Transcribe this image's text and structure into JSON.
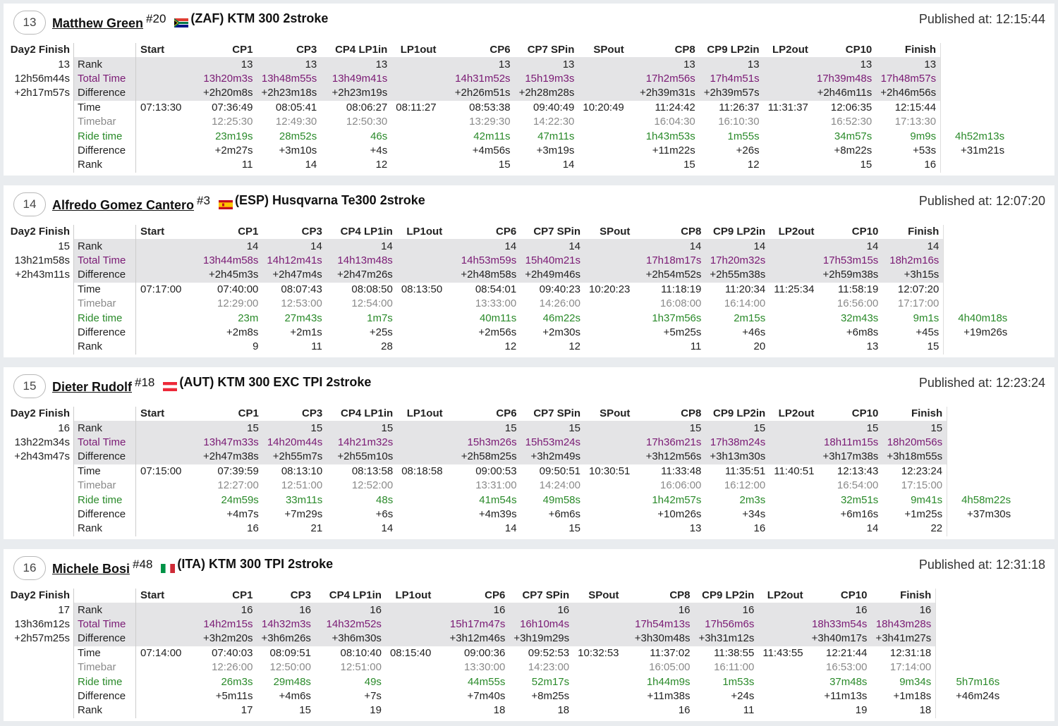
{
  "columns": [
    "Start",
    "CP1",
    "CP3",
    "CP4 LP1in",
    "LP1out",
    "CP6",
    "CP7 SPin",
    "SPout",
    "CP8",
    "CP9 LP2in",
    "LP2out",
    "CP10",
    "Finish"
  ],
  "day_label": "Day2 Finish",
  "row_labels": [
    "Rank",
    "Total Time",
    "Difference",
    "Time",
    "Timebar",
    "Ride time",
    "Difference",
    "Rank"
  ],
  "published_prefix": "Published at: ",
  "riders": [
    {
      "position": "13",
      "name": "Matthew Green",
      "number": "#20",
      "country": "ZAF",
      "bike": "(ZAF) KTM 300 2stroke",
      "published": "Published at: 12:15:44",
      "day_rank": "13",
      "day_time": "12h56m44s",
      "day_diff": "+2h17m57s",
      "rows": {
        "rank": [
          "",
          "13",
          "13",
          "13",
          "",
          "13",
          "13",
          "",
          "13",
          "13",
          "",
          "13",
          "13"
        ],
        "total_time": [
          "",
          "13h20m3s",
          "13h48m55s",
          "13h49m41s",
          "",
          "14h31m52s",
          "15h19m3s",
          "",
          "17h2m56s",
          "17h4m51s",
          "",
          "17h39m48s",
          "17h48m57s"
        ],
        "difference": [
          "",
          "+2h20m8s",
          "+2h23m18s",
          "+2h23m19s",
          "",
          "+2h26m51s",
          "+2h28m28s",
          "",
          "+2h39m31s",
          "+2h39m57s",
          "",
          "+2h46m11s",
          "+2h46m56s"
        ],
        "time": [
          "07:13:30",
          "07:36:49",
          "08:05:41",
          "08:06:27",
          "08:11:27",
          "08:53:38",
          "09:40:49",
          "10:20:49",
          "11:24:42",
          "11:26:37",
          "11:31:37",
          "12:06:35",
          "12:15:44"
        ],
        "timebar": [
          "",
          "12:25:30",
          "12:49:30",
          "12:50:30",
          "",
          "13:29:30",
          "14:22:30",
          "",
          "16:04:30",
          "16:10:30",
          "",
          "16:52:30",
          "17:13:30"
        ],
        "ride_time": [
          "",
          "23m19s",
          "28m52s",
          "46s",
          "",
          "42m11s",
          "47m11s",
          "",
          "1h43m53s",
          "1m55s",
          "",
          "34m57s",
          "9m9s"
        ],
        "ride_diff": [
          "",
          "+2m27s",
          "+3m10s",
          "+4s",
          "",
          "+4m56s",
          "+3m19s",
          "",
          "+11m22s",
          "+26s",
          "",
          "+8m22s",
          "+53s"
        ],
        "ride_rank": [
          "",
          "11",
          "14",
          "12",
          "",
          "15",
          "14",
          "",
          "15",
          "12",
          "",
          "15",
          "16"
        ]
      },
      "total_ride": "4h52m13s",
      "total_diff": "+31m21s"
    },
    {
      "position": "14",
      "name": "Alfredo Gomez Cantero",
      "number": "#3",
      "country": "ESP",
      "bike": "(ESP) Husqvarna Te300 2stroke",
      "published": "Published at: 12:07:20",
      "day_rank": "15",
      "day_time": "13h21m58s",
      "day_diff": "+2h43m11s",
      "rows": {
        "rank": [
          "",
          "14",
          "14",
          "14",
          "",
          "14",
          "14",
          "",
          "14",
          "14",
          "",
          "14",
          "14"
        ],
        "total_time": [
          "",
          "13h44m58s",
          "14h12m41s",
          "14h13m48s",
          "",
          "14h53m59s",
          "15h40m21s",
          "",
          "17h18m17s",
          "17h20m32s",
          "",
          "17h53m15s",
          "18h2m16s"
        ],
        "difference": [
          "",
          "+2h45m3s",
          "+2h47m4s",
          "+2h47m26s",
          "",
          "+2h48m58s",
          "+2h49m46s",
          "",
          "+2h54m52s",
          "+2h55m38s",
          "",
          "+2h59m38s",
          "+3h15s"
        ],
        "time": [
          "07:17:00",
          "07:40:00",
          "08:07:43",
          "08:08:50",
          "08:13:50",
          "08:54:01",
          "09:40:23",
          "10:20:23",
          "11:18:19",
          "11:20:34",
          "11:25:34",
          "11:58:19",
          "12:07:20"
        ],
        "timebar": [
          "",
          "12:29:00",
          "12:53:00",
          "12:54:00",
          "",
          "13:33:00",
          "14:26:00",
          "",
          "16:08:00",
          "16:14:00",
          "",
          "16:56:00",
          "17:17:00"
        ],
        "ride_time": [
          "",
          "23m",
          "27m43s",
          "1m7s",
          "",
          "40m11s",
          "46m22s",
          "",
          "1h37m56s",
          "2m15s",
          "",
          "32m43s",
          "9m1s"
        ],
        "ride_diff": [
          "",
          "+2m8s",
          "+2m1s",
          "+25s",
          "",
          "+2m56s",
          "+2m30s",
          "",
          "+5m25s",
          "+46s",
          "",
          "+6m8s",
          "+45s"
        ],
        "ride_rank": [
          "",
          "9",
          "11",
          "28",
          "",
          "12",
          "12",
          "",
          "11",
          "20",
          "",
          "13",
          "15"
        ]
      },
      "total_ride": "4h40m18s",
      "total_diff": "+19m26s"
    },
    {
      "position": "15",
      "name": "Dieter Rudolf",
      "number": "#18",
      "country": "AUT",
      "bike": "(AUT) KTM 300 EXC TPI 2stroke",
      "published": "Published at: 12:23:24",
      "day_rank": "16",
      "day_time": "13h22m34s",
      "day_diff": "+2h43m47s",
      "rows": {
        "rank": [
          "",
          "15",
          "15",
          "15",
          "",
          "15",
          "15",
          "",
          "15",
          "15",
          "",
          "15",
          "15"
        ],
        "total_time": [
          "",
          "13h47m33s",
          "14h20m44s",
          "14h21m32s",
          "",
          "15h3m26s",
          "15h53m24s",
          "",
          "17h36m21s",
          "17h38m24s",
          "",
          "18h11m15s",
          "18h20m56s"
        ],
        "difference": [
          "",
          "+2h47m38s",
          "+2h55m7s",
          "+2h55m10s",
          "",
          "+2h58m25s",
          "+3h2m49s",
          "",
          "+3h12m56s",
          "+3h13m30s",
          "",
          "+3h17m38s",
          "+3h18m55s"
        ],
        "time": [
          "07:15:00",
          "07:39:59",
          "08:13:10",
          "08:13:58",
          "08:18:58",
          "09:00:53",
          "09:50:51",
          "10:30:51",
          "11:33:48",
          "11:35:51",
          "11:40:51",
          "12:13:43",
          "12:23:24"
        ],
        "timebar": [
          "",
          "12:27:00",
          "12:51:00",
          "12:52:00",
          "",
          "13:31:00",
          "14:24:00",
          "",
          "16:06:00",
          "16:12:00",
          "",
          "16:54:00",
          "17:15:00"
        ],
        "ride_time": [
          "",
          "24m59s",
          "33m11s",
          "48s",
          "",
          "41m54s",
          "49m58s",
          "",
          "1h42m57s",
          "2m3s",
          "",
          "32m51s",
          "9m41s"
        ],
        "ride_diff": [
          "",
          "+4m7s",
          "+7m29s",
          "+6s",
          "",
          "+4m39s",
          "+6m6s",
          "",
          "+10m26s",
          "+34s",
          "",
          "+6m16s",
          "+1m25s"
        ],
        "ride_rank": [
          "",
          "16",
          "21",
          "14",
          "",
          "14",
          "15",
          "",
          "13",
          "16",
          "",
          "14",
          "22"
        ]
      },
      "total_ride": "4h58m22s",
      "total_diff": "+37m30s"
    },
    {
      "position": "16",
      "name": "Michele Bosi",
      "number": "#48",
      "country": "ITA",
      "bike": "(ITA) KTM 300 TPI 2stroke",
      "published": "Published at: 12:31:18",
      "day_rank": "17",
      "day_time": "13h36m12s",
      "day_diff": "+2h57m25s",
      "rows": {
        "rank": [
          "",
          "16",
          "16",
          "16",
          "",
          "16",
          "16",
          "",
          "16",
          "16",
          "",
          "16",
          "16"
        ],
        "total_time": [
          "",
          "14h2m15s",
          "14h32m3s",
          "14h32m52s",
          "",
          "15h17m47s",
          "16h10m4s",
          "",
          "17h54m13s",
          "17h56m6s",
          "",
          "18h33m54s",
          "18h43m28s"
        ],
        "difference": [
          "",
          "+3h2m20s",
          "+3h6m26s",
          "+3h6m30s",
          "",
          "+3h12m46s",
          "+3h19m29s",
          "",
          "+3h30m48s",
          "+3h31m12s",
          "",
          "+3h40m17s",
          "+3h41m27s"
        ],
        "time": [
          "07:14:00",
          "07:40:03",
          "08:09:51",
          "08:10:40",
          "08:15:40",
          "09:00:36",
          "09:52:53",
          "10:32:53",
          "11:37:02",
          "11:38:55",
          "11:43:55",
          "12:21:44",
          "12:31:18"
        ],
        "timebar": [
          "",
          "12:26:00",
          "12:50:00",
          "12:51:00",
          "",
          "13:30:00",
          "14:23:00",
          "",
          "16:05:00",
          "16:11:00",
          "",
          "16:53:00",
          "17:14:00"
        ],
        "ride_time": [
          "",
          "26m3s",
          "29m48s",
          "49s",
          "",
          "44m55s",
          "52m17s",
          "",
          "1h44m9s",
          "1m53s",
          "",
          "37m48s",
          "9m34s"
        ],
        "ride_diff": [
          "",
          "+5m11s",
          "+4m6s",
          "+7s",
          "",
          "+7m40s",
          "+8m25s",
          "",
          "+11m38s",
          "+24s",
          "",
          "+11m13s",
          "+1m18s"
        ],
        "ride_rank": [
          "",
          "17",
          "15",
          "19",
          "",
          "18",
          "18",
          "",
          "16",
          "11",
          "",
          "19",
          "18"
        ]
      },
      "total_ride": "5h7m16s",
      "total_diff": "+46m24s"
    }
  ]
}
